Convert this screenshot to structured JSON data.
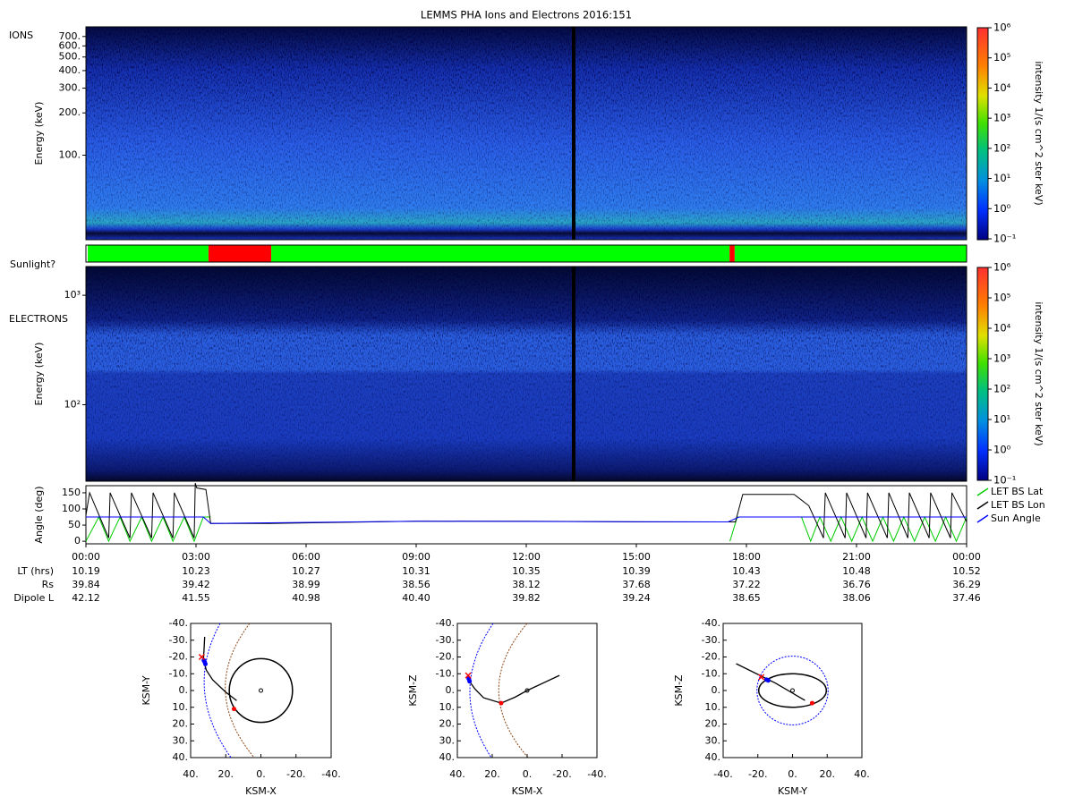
{
  "title": "LEMMS PHA Ions and Electrons  2016:151",
  "time_axis": {
    "xlim": [
      0,
      24
    ],
    "xticks": [
      {
        "value": 0,
        "label": "00:00"
      },
      {
        "value": 3,
        "label": "03:00"
      },
      {
        "value": 6,
        "label": "06:00"
      },
      {
        "value": 9,
        "label": "09:00"
      },
      {
        "value": 12,
        "label": "12:00"
      },
      {
        "value": 15,
        "label": "15:00"
      },
      {
        "value": 18,
        "label": "18:00"
      },
      {
        "value": 21,
        "label": "21:00"
      },
      {
        "value": 24,
        "label": "00:00"
      }
    ]
  },
  "ephemeris": {
    "rows": [
      {
        "label": "LT (hrs)",
        "values": [
          "10.19",
          "10.23",
          "10.27",
          "10.31",
          "10.35",
          "10.39",
          "10.43",
          "10.48",
          "10.52"
        ]
      },
      {
        "label": "Rs",
        "values": [
          "39.84",
          "39.42",
          "38.99",
          "38.56",
          "38.12",
          "37.68",
          "37.22",
          "36.76",
          "36.29"
        ]
      },
      {
        "label": "Dipole L",
        "values": [
          "42.12",
          "41.55",
          "40.98",
          "40.40",
          "39.82",
          "39.24",
          "38.65",
          "38.06",
          "37.46"
        ]
      }
    ]
  },
  "chart_data": [
    {
      "type": "spectrogram",
      "label": "IONS",
      "ylabel": "Energy (keV)",
      "log_y": true,
      "ylim": [
        25,
        820
      ],
      "yticks": [
        {
          "value": 700,
          "label": "700."
        },
        {
          "value": 600,
          "label": "600."
        },
        {
          "value": 500,
          "label": "500."
        },
        {
          "value": 400,
          "label": "400."
        },
        {
          "value": 300,
          "label": "300."
        },
        {
          "value": 200,
          "label": "200."
        },
        {
          "value": 100,
          "label": "100."
        }
      ],
      "colorbar": {
        "label": "intensity 1/(s cm^2 ster keV)",
        "log": true,
        "lim": [
          0.1,
          1000000
        ],
        "ticks": [
          {
            "value": 0.1,
            "label": "10⁻¹"
          },
          {
            "value": 1,
            "label": "10⁰"
          },
          {
            "value": 10,
            "label": "10¹"
          },
          {
            "value": 100,
            "label": "10²"
          },
          {
            "value": 1000,
            "label": "10³"
          },
          {
            "value": 10000,
            "label": "10⁴"
          },
          {
            "value": 100000,
            "label": "10⁵"
          },
          {
            "value": 1000000,
            "label": "10⁶"
          }
        ]
      }
    },
    {
      "type": "status",
      "label": "Sunlight?",
      "segments": [
        {
          "start": 0,
          "end": 0.05,
          "color": "#ffffff"
        },
        {
          "start": 0.05,
          "end": 3.34,
          "color": "#00ff00"
        },
        {
          "start": 3.34,
          "end": 5.05,
          "color": "#ff0000"
        },
        {
          "start": 5.05,
          "end": 17.54,
          "color": "#00ff00"
        },
        {
          "start": 17.54,
          "end": 17.68,
          "color": "#ff0000"
        },
        {
          "start": 17.68,
          "end": 24,
          "color": "#00ff00"
        }
      ]
    },
    {
      "type": "spectrogram",
      "label": "ELECTRONS",
      "ylabel": "Energy (keV)",
      "log_y": true,
      "ylim": [
        20,
        1830
      ],
      "yticks": [
        {
          "value": 100,
          "label": "10²"
        },
        {
          "value": 1000,
          "label": "10³"
        }
      ],
      "colorbar": {
        "label": "intensity 1/(s cm^2 ster keV)",
        "log": true,
        "lim": [
          0.1,
          1000000
        ],
        "ticks": [
          {
            "value": 0.1,
            "label": "10⁻¹"
          },
          {
            "value": 1,
            "label": "10⁰"
          },
          {
            "value": 10,
            "label": "10¹"
          },
          {
            "value": 100,
            "label": "10²"
          },
          {
            "value": 1000,
            "label": "10³"
          },
          {
            "value": 10000,
            "label": "10⁴"
          },
          {
            "value": 100000,
            "label": "10⁵"
          },
          {
            "value": 1000000,
            "label": "10⁶"
          }
        ]
      }
    },
    {
      "type": "line",
      "ylabel": "Angle (deg)",
      "ylim": [
        -8,
        172
      ],
      "yticks": [
        0,
        50,
        100,
        150
      ],
      "series": [
        {
          "name": "LET BS Lat",
          "color": "#00cc00",
          "x": [
            0,
            0.35,
            0.62,
            0.93,
            1.2,
            1.52,
            1.79,
            2.1,
            2.37,
            2.68,
            2.95,
            3.2,
            3.4,
            3.5,
            17.55,
            17.75,
            19.5,
            19.75,
            20.0,
            20.3,
            20.58,
            20.87,
            21.15,
            21.44,
            21.72,
            22.01,
            22.29,
            22.58,
            22.86,
            23.15,
            23.43,
            23.72,
            24
          ],
          "values": [
            0,
            75,
            0,
            75,
            0,
            75,
            0,
            75,
            0,
            75,
            0,
            75,
            75,
            null,
            0,
            75,
            75,
            0,
            75,
            0,
            75,
            0,
            75,
            0,
            75,
            0,
            75,
            0,
            75,
            0,
            75,
            0,
            75
          ]
        },
        {
          "name": "LET BS Lon",
          "color": "#000000",
          "x": [
            0,
            0.1,
            0.62,
            0.66,
            1.2,
            1.24,
            1.79,
            1.83,
            2.37,
            2.41,
            2.95,
            2.98,
            3.02,
            3.27,
            3.4,
            5,
            9,
            12,
            15,
            17.5,
            17.7,
            17.9,
            19.3,
            19.7,
            20.1,
            20.15,
            20.69,
            20.73,
            21.26,
            21.3,
            21.84,
            21.88,
            22.4,
            22.44,
            22.98,
            23.02,
            23.56,
            23.6,
            24
          ],
          "values": [
            80,
            150,
            10,
            150,
            10,
            150,
            10,
            150,
            10,
            150,
            10,
            180,
            165,
            160,
            55,
            55,
            62,
            62,
            60,
            60,
            60,
            145,
            145,
            110,
            10,
            150,
            10,
            150,
            10,
            150,
            10,
            150,
            10,
            150,
            10,
            150,
            10,
            150,
            60
          ]
        },
        {
          "name": "Sun Angle",
          "color": "#0000ff",
          "x": [
            0,
            3.2,
            3.4,
            9,
            17.5,
            17.8,
            24
          ],
          "values": [
            75,
            75,
            55,
            62,
            60,
            75,
            75
          ]
        }
      ]
    },
    {
      "type": "orbit",
      "xlabel": "KSM-X",
      "ylabel": "KSM-Y",
      "xlim": [
        40,
        -40
      ],
      "ylim": [
        40,
        -40
      ],
      "xticks": [
        {
          "value": 40,
          "label": "40."
        },
        {
          "value": 20,
          "label": "20."
        },
        {
          "value": 0,
          "label": "0."
        },
        {
          "value": -20,
          "label": "-20."
        },
        {
          "value": -40,
          "label": "-40."
        }
      ],
      "yticks": [
        {
          "value": -40,
          "label": "-40."
        },
        {
          "value": -30,
          "label": "-30."
        },
        {
          "value": -20,
          "label": "-20."
        },
        {
          "value": -10,
          "label": "-10."
        },
        {
          "value": 0,
          "label": "0."
        },
        {
          "value": 10,
          "label": "10."
        },
        {
          "value": 20,
          "label": "20."
        },
        {
          "value": 30,
          "label": "30."
        },
        {
          "value": 40,
          "label": "40."
        }
      ],
      "trajectory": {
        "x": [
          32,
          32.7,
          31,
          27.5,
          20,
          13.8
        ],
        "y": [
          -32,
          -18,
          -12,
          -6.4,
          1,
          6
        ]
      },
      "ellipses": [
        {
          "cx": 0,
          "cy": 0,
          "rx": 18,
          "ry": 19,
          "color": "#000000",
          "dashed": false
        }
      ],
      "markers": [
        {
          "x": 32.5,
          "y": -18,
          "symbol": "dot",
          "color": "#0000ff"
        },
        {
          "x": 32,
          "y": -17,
          "symbol": "dot",
          "color": "#0000ff"
        },
        {
          "x": 31.6,
          "y": -15.8,
          "symbol": "dot",
          "color": "#0000ff"
        },
        {
          "x": 33.7,
          "y": -20,
          "symbol": "x",
          "color": "#ff0000"
        },
        {
          "x": 15.3,
          "y": 11,
          "symbol": "dot",
          "color": "#ff0000"
        }
      ]
    },
    {
      "type": "orbit",
      "xlabel": "KSM-X",
      "ylabel": "KSM-Z",
      "xlim": [
        40,
        -40
      ],
      "ylim": [
        40,
        -40
      ],
      "xticks": [
        {
          "value": 40,
          "label": "40."
        },
        {
          "value": 20,
          "label": "20."
        },
        {
          "value": 0,
          "label": "0."
        },
        {
          "value": -20,
          "label": "-20."
        },
        {
          "value": -40,
          "label": "-40."
        }
      ],
      "yticks": [
        {
          "value": -40,
          "label": "-40."
        },
        {
          "value": -30,
          "label": "-30."
        },
        {
          "value": -20,
          "label": "-20."
        },
        {
          "value": -10,
          "label": "-10."
        },
        {
          "value": 0,
          "label": "0."
        },
        {
          "value": 10,
          "label": "10."
        },
        {
          "value": 20,
          "label": "20."
        },
        {
          "value": 30,
          "label": "30."
        },
        {
          "value": 40,
          "label": "40."
        }
      ],
      "trajectory": {
        "x": [
          34.4,
          30,
          25,
          14.9,
          7,
          0,
          -18.5
        ],
        "y": [
          -7.5,
          -1,
          4.3,
          7.5,
          4,
          0,
          -9
        ]
      },
      "ellipses": [],
      "markers": [
        {
          "x": 33.5,
          "y": -7,
          "symbol": "dot",
          "color": "#0000ff"
        },
        {
          "x": 33,
          "y": -5.5,
          "symbol": "dot",
          "color": "#0000ff"
        },
        {
          "x": 33.8,
          "y": -9,
          "symbol": "x",
          "color": "#ff0000"
        },
        {
          "x": 14.9,
          "y": 7.5,
          "symbol": "dot",
          "color": "#ff0000"
        }
      ]
    },
    {
      "type": "orbit",
      "xlabel": "KSM-Y",
      "ylabel": "KSM-Z",
      "xlim": [
        -40,
        40
      ],
      "ylim": [
        40,
        -40
      ],
      "xticks": [
        {
          "value": -40,
          "label": "-40."
        },
        {
          "value": -20,
          "label": "-20."
        },
        {
          "value": 0,
          "label": "0."
        },
        {
          "value": 20,
          "label": "20."
        },
        {
          "value": 40,
          "label": "40."
        }
      ],
      "yticks": [
        {
          "value": -40,
          "label": "-40."
        },
        {
          "value": -30,
          "label": "-30."
        },
        {
          "value": -20,
          "label": "-20."
        },
        {
          "value": -10,
          "label": "-10."
        },
        {
          "value": 0,
          "label": "0."
        },
        {
          "value": 10,
          "label": "10."
        },
        {
          "value": 20,
          "label": "20."
        },
        {
          "value": 30,
          "label": "30."
        },
        {
          "value": 40,
          "label": "40."
        }
      ],
      "trajectory": {
        "x": [
          -32.5,
          -10,
          7.2
        ],
        "y": [
          -16,
          -4.5,
          5.9
        ]
      },
      "ellipses": [
        {
          "cx": 0,
          "cy": 0,
          "rx": 19.5,
          "ry": 10,
          "color": "#000000",
          "dashed": false
        },
        {
          "cx": 0,
          "cy": 0,
          "rx": 20.5,
          "ry": 20.5,
          "color": "#0000ff",
          "dashed": true
        }
      ],
      "markers": [
        {
          "x": -15,
          "y": -6.5,
          "symbol": "dot",
          "color": "#0000ff"
        },
        {
          "x": -14,
          "y": -6,
          "symbol": "dot",
          "color": "#0000ff"
        },
        {
          "x": -18,
          "y": -8,
          "symbol": "x",
          "color": "#ff0000"
        },
        {
          "x": 11.3,
          "y": 7.5,
          "symbol": "dot",
          "color": "#ff0000"
        }
      ]
    }
  ]
}
